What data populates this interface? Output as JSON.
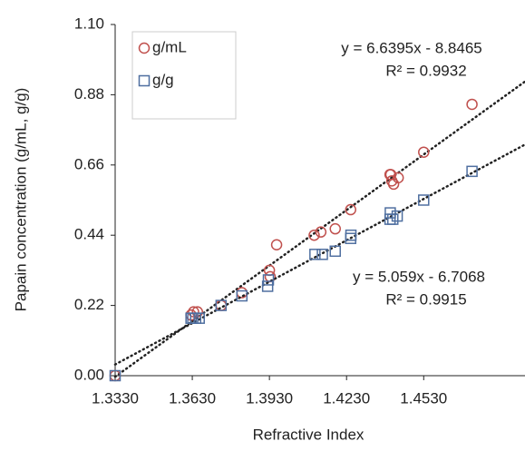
{
  "chart_data": {
    "type": "scatter",
    "x_label": "Refractive Index",
    "y_label": "Papain concentration (g/mL, g/g)",
    "xlim": [
      1.333,
      1.4924
    ],
    "ylim": [
      0,
      1.1
    ],
    "xticks": [
      {
        "value": 1.333,
        "label": "1.3330"
      },
      {
        "value": 1.363,
        "label": "1.3630"
      },
      {
        "value": 1.393,
        "label": "1.3930"
      },
      {
        "value": 1.423,
        "label": "1.4230"
      },
      {
        "value": 1.453,
        "label": "1.4530"
      }
    ],
    "yticks": [
      {
        "value": 0,
        "label": "0.00"
      },
      {
        "value": 0.22,
        "label": "0.22"
      },
      {
        "value": 0.44,
        "label": "0.44"
      },
      {
        "value": 0.66,
        "label": "0.66"
      },
      {
        "value": 0.88,
        "label": "0.88"
      },
      {
        "value": 1.1,
        "label": "1.10"
      }
    ],
    "legend": "top-left",
    "series": [
      {
        "name": "g/mL",
        "color": "#c0504d",
        "marker": "circle",
        "equation": "y = 6.6395x - 8.8465",
        "r2": "R² = 0.9932",
        "x": [
          1.333,
          1.3625,
          1.3635,
          1.365,
          1.3742,
          1.3823,
          1.393,
          1.3933,
          1.3958,
          1.4104,
          1.413,
          1.4186,
          1.4246,
          1.4399,
          1.4402,
          1.4406,
          1.4413,
          1.4431,
          1.453,
          1.4718
        ],
        "values": [
          0,
          0.19,
          0.2,
          0.2,
          0.22,
          0.26,
          0.33,
          0.31,
          0.41,
          0.44,
          0.45,
          0.46,
          0.52,
          0.63,
          0.63,
          0.61,
          0.6,
          0.62,
          0.7,
          0.85
        ]
      },
      {
        "name": "g/g",
        "color": "#4f6fa0",
        "marker": "square",
        "equation": "y = 5.059x - 6.7068",
        "r2": "R² = 0.9915",
        "x": [
          1.333,
          1.3625,
          1.3632,
          1.3643,
          1.3657,
          1.3742,
          1.3823,
          1.3923,
          1.3926,
          1.4107,
          1.4136,
          1.4186,
          1.4246,
          1.4247,
          1.4399,
          1.44,
          1.441,
          1.4427,
          1.453,
          1.4718
        ],
        "values": [
          0,
          0.18,
          0.18,
          0.18,
          0.18,
          0.22,
          0.25,
          0.28,
          0.3,
          0.38,
          0.38,
          0.39,
          0.43,
          0.44,
          0.49,
          0.51,
          0.49,
          0.5,
          0.55,
          0.64
        ]
      }
    ]
  }
}
